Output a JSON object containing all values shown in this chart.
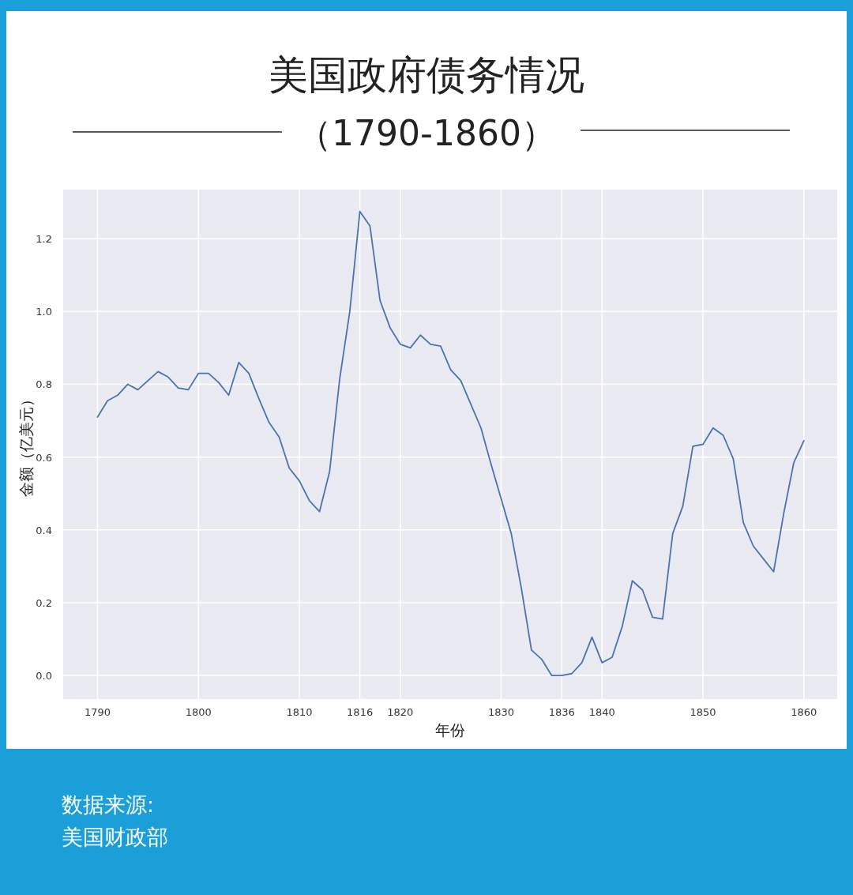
{
  "chart_data": {
    "type": "line",
    "title": "美国政府债务情况",
    "subtitle": "（1790-1860）",
    "xlabel": "年份",
    "ylabel": "金额（亿美元）",
    "x": [
      1790,
      1791,
      1792,
      1793,
      1794,
      1795,
      1796,
      1797,
      1798,
      1799,
      1800,
      1801,
      1802,
      1803,
      1804,
      1805,
      1806,
      1807,
      1808,
      1809,
      1810,
      1811,
      1812,
      1813,
      1814,
      1815,
      1816,
      1817,
      1818,
      1819,
      1820,
      1821,
      1822,
      1823,
      1824,
      1825,
      1826,
      1827,
      1828,
      1829,
      1830,
      1831,
      1832,
      1833,
      1834,
      1835,
      1836,
      1837,
      1838,
      1839,
      1840,
      1841,
      1842,
      1843,
      1844,
      1845,
      1846,
      1847,
      1848,
      1849,
      1850,
      1851,
      1852,
      1853,
      1854,
      1855,
      1856,
      1857,
      1858,
      1859,
      1860
    ],
    "series": [
      {
        "color": "#4c72b0",
        "values": [
          0.71,
          0.755,
          0.77,
          0.8,
          0.785,
          0.81,
          0.835,
          0.82,
          0.79,
          0.785,
          0.83,
          0.83,
          0.805,
          0.77,
          0.86,
          0.83,
          0.76,
          0.695,
          0.655,
          0.57,
          0.535,
          0.48,
          0.45,
          0.56,
          0.815,
          1.0,
          1.275,
          1.235,
          1.03,
          0.955,
          0.91,
          0.9,
          0.935,
          0.91,
          0.905,
          0.84,
          0.81,
          0.745,
          0.68,
          0.58,
          0.485,
          0.39,
          0.24,
          0.07,
          0.045,
          0.0,
          0.0,
          0.005,
          0.035,
          0.105,
          0.035,
          0.05,
          0.135,
          0.26,
          0.235,
          0.16,
          0.155,
          0.39,
          0.465,
          0.63,
          0.635,
          0.68,
          0.66,
          0.595,
          0.42,
          0.355,
          0.32,
          0.285,
          0.445,
          0.585,
          0.645
        ]
      }
    ],
    "xlim": [
      1786.6,
      1863.3
    ],
    "xticks": [
      1790,
      1800,
      1810,
      1816,
      1820,
      1830,
      1836,
      1840,
      1850,
      1860
    ],
    "ylim": [
      -0.065,
      1.335
    ],
    "yticks": [
      {
        "value": 0,
        "label": "0.0"
      },
      0.2,
      0.4,
      0.6,
      0.8,
      {
        "value": 1,
        "label": "1.0"
      },
      1.2
    ],
    "grid": true,
    "line_style": "solid",
    "marker": "none",
    "annotations": [
      "数据来源:",
      "美国财政部"
    ]
  }
}
